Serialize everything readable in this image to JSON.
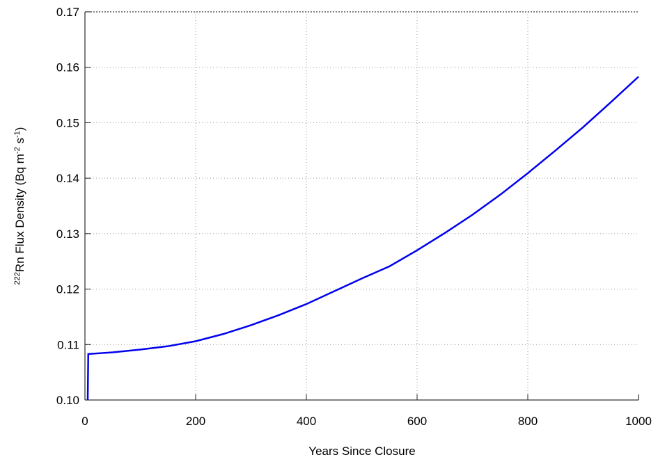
{
  "chart_data": {
    "type": "line",
    "xlabel": "Years Since Closure",
    "ylabel": [
      {
        "text": "222",
        "sup": true
      },
      {
        "text": "Rn Flux Density (Bq m",
        "sup": false
      },
      {
        "text": "-2",
        "sup": true
      },
      {
        "text": " s",
        "sup": false
      },
      {
        "text": "-1",
        "sup": true
      },
      {
        "text": ")",
        "sup": false
      }
    ],
    "x": [
      5,
      6,
      50,
      100,
      150,
      200,
      250,
      300,
      350,
      400,
      450,
      500,
      550,
      600,
      650,
      700,
      750,
      800,
      850,
      900,
      950,
      1000
    ],
    "series": [
      {
        "color": "#0000ee",
        "values": [
          0.1,
          0.1083,
          0.1086,
          0.1091,
          0.1097,
          0.1106,
          0.1119,
          0.1135,
          0.1153,
          0.1173,
          0.1196,
          0.1219,
          0.1241,
          0.127,
          0.1301,
          0.1334,
          0.137,
          0.1409,
          0.145,
          0.1492,
          0.1537,
          0.1583
        ]
      }
    ],
    "xlim": [
      0,
      1000
    ],
    "xticks": [
      0,
      200,
      400,
      600,
      800,
      1000
    ],
    "ylim": [
      0.1,
      0.17
    ],
    "yticks": [
      {
        "value": 0.1,
        "label": "0.10"
      },
      0.11,
      0.12,
      0.13,
      0.14,
      0.15,
      0.16,
      0.17
    ],
    "grid": true
  }
}
